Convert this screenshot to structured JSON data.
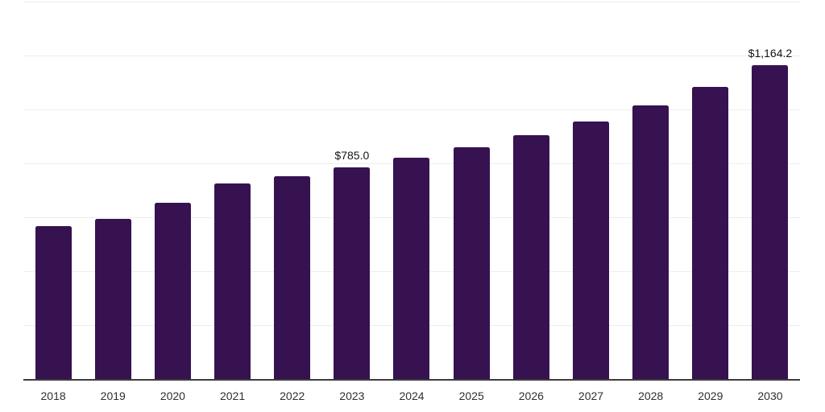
{
  "chart_data": {
    "type": "bar",
    "categories": [
      "2018",
      "2019",
      "2020",
      "2021",
      "2022",
      "2023",
      "2024",
      "2025",
      "2026",
      "2027",
      "2028",
      "2029",
      "2030"
    ],
    "values": [
      568,
      593,
      654,
      726,
      753,
      785.0,
      820,
      859,
      906,
      956,
      1016,
      1085,
      1164.2
    ],
    "bar_labels": [
      "",
      "",
      "",
      "",
      "",
      "$785.0",
      "",
      "",
      "",
      "",
      "",
      "",
      "$1,164.2"
    ],
    "title": "",
    "xlabel": "",
    "ylabel": "",
    "ylim": [
      0,
      1400
    ],
    "gridline_step": 200,
    "grid": true,
    "legend": "none",
    "y_axis_tick_labels_visible": false
  },
  "colors": {
    "bar": "#361251",
    "gridline": "#ededed",
    "axis_line": "#3c3c3c",
    "tick_label": "#2f2f2f",
    "data_label": "#141414",
    "background": "#ffffff"
  }
}
